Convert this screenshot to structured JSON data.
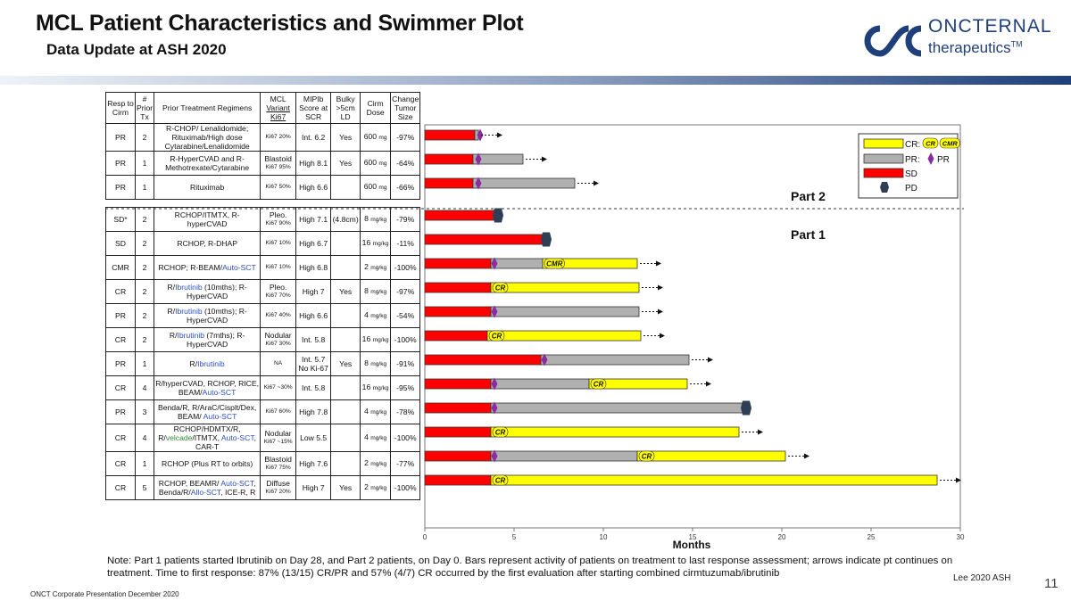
{
  "header": {
    "title": "MCL Patient Characteristics and Swimmer Plot",
    "subtitle": "Data Update at ASH 2020",
    "brand_name": "ONCTERNAL",
    "brand_sub": "therapeutics",
    "brand_tm": "TM",
    "brand_color": "#1f3f7a"
  },
  "table": {
    "headers": {
      "resp": "Resp to Cirm",
      "prior": "# Prior Tx",
      "regimens": "Prior Treatment Regimens",
      "variant_1": "MCL",
      "variant_2": "Variant",
      "variant_3": "Ki67",
      "mipi": "MIPIb Score at SCR",
      "bulky": "Bulky >5cm LD",
      "dose": "Cirm Dose",
      "change": "Change Tumor Size"
    },
    "part2_rows": [
      {
        "resp": "PR",
        "prior": "2",
        "regimen": "R-CHOP/ Lenalidomide; Rituximab/High dose Cytarabine/Lenalidomide",
        "variant": "",
        "ki67": "Ki67 20%",
        "mipi": "Int. 6.2",
        "bulky": "Yes",
        "dose": "600",
        "dose_unit": "mg",
        "change": "-97%"
      },
      {
        "resp": "PR",
        "prior": "1",
        "regimen": "R-HyperCVAD and R-Methotrexate/Cytarabine",
        "variant": "Blastoid",
        "ki67": "Ki67 95%",
        "mipi": "High 8.1",
        "bulky": "Yes",
        "dose": "600",
        "dose_unit": "mg",
        "change": "-64%"
      },
      {
        "resp": "PR",
        "prior": "1",
        "regimen": "Rituximab",
        "variant": "",
        "ki67": "Ki67 50%",
        "mipi": "High 6.6",
        "bulky": "",
        "dose": "600",
        "dose_unit": "mg",
        "change": "-66%"
      }
    ],
    "part1_rows": [
      {
        "resp": "SD*",
        "prior": "2",
        "regimen": "RCHOP/ITMTX, R-hyperCVAD",
        "variant": "Pleo.",
        "ki67": "Ki67 90%",
        "mipi": "High 7.1",
        "bulky": "(4.8cm)",
        "dose": "8",
        "dose_unit": "mg/kg",
        "change": "-79%"
      },
      {
        "resp": "SD",
        "prior": "2",
        "regimen": "RCHOP, R-DHAP",
        "variant": "",
        "ki67": "Ki67 10%",
        "mipi": "High 6.7",
        "bulky": "",
        "dose": "16",
        "dose_unit": "mg/kg",
        "change": "-11%"
      },
      {
        "resp": "CMR",
        "prior": "2",
        "regimen": "RCHOP; R-BEAM/Auto-SCT",
        "variant": "",
        "ki67": "Ki67 10%",
        "mipi": "High 6.8",
        "bulky": "",
        "dose": "2",
        "dose_unit": "mg/kg",
        "change": "-100%"
      },
      {
        "resp": "CR",
        "prior": "2",
        "regimen": "R/Ibrutinib (10mths); R-HyperCVAD",
        "variant": "Pleo.",
        "ki67": "Ki67 70%",
        "mipi": "High 7",
        "bulky": "Yes",
        "dose": "8",
        "dose_unit": "mg/kg",
        "change": "-97%"
      },
      {
        "resp": "PR",
        "prior": "2",
        "regimen": "R/Ibrutinib (10mths); R-HyperCVAD",
        "variant": "",
        "ki67": "Ki67 40%",
        "mipi": "High 6.6",
        "bulky": "",
        "dose": "4",
        "dose_unit": "mg/kg",
        "change": "-54%"
      },
      {
        "resp": "CR",
        "prior": "2",
        "regimen": "R/Ibrutinib (7mths); R-HyperCVAD",
        "variant": "Nodular",
        "ki67": "Ki67 30%",
        "mipi": "Int. 5.8",
        "bulky": "",
        "dose": "16",
        "dose_unit": "mg/kg",
        "change": "-100%"
      },
      {
        "resp": "PR",
        "prior": "1",
        "regimen": "R/Ibrutinib",
        "variant": "",
        "ki67": "NA",
        "mipi": "Int. 5.7 No Ki-67",
        "bulky": "Yes",
        "dose": "8",
        "dose_unit": "mg/kg",
        "change": "-91%"
      },
      {
        "resp": "CR",
        "prior": "4",
        "regimen": "R/hyperCVAD, RCHOP, RICE, BEAM/Auto-SCT",
        "variant": "",
        "ki67": "Ki67 ~30%",
        "mipi": "Int. 5.8",
        "bulky": "",
        "dose": "16",
        "dose_unit": "mg/kg",
        "change": "-95%"
      },
      {
        "resp": "PR",
        "prior": "3",
        "regimen": "Benda/R, R/AraC/Cisplt/Dex, BEAM/ Auto-SCT",
        "variant": "",
        "ki67": "Ki67 60%",
        "mipi": "High 7.8",
        "bulky": "",
        "dose": "4",
        "dose_unit": "mg/kg",
        "change": "-78%"
      },
      {
        "resp": "CR",
        "prior": "4",
        "regimen": "RCHOP/HDMTX/R, R/velcade/ITMTX, Auto-SCT, CAR-T",
        "variant": "Nodular",
        "ki67": "Ki67 ~15%",
        "mipi": "Low 5.5",
        "bulky": "",
        "dose": "4",
        "dose_unit": "mg/kg",
        "change": "-100%"
      },
      {
        "resp": "CR",
        "prior": "1",
        "regimen": "RCHOP (Plus RT to orbits)",
        "variant": "Blastoid",
        "ki67": "Ki67 75%",
        "mipi": "High 7.6",
        "bulky": "",
        "dose": "2",
        "dose_unit": "mg/kg",
        "change": "-77%"
      },
      {
        "resp": "CR",
        "prior": "5",
        "regimen": "RCHOP, BEAMR/ Auto-SCT, Benda/R/Allo-SCT, ICE-R, R",
        "variant": "Diffuse",
        "ki67": "Ki67 20%",
        "mipi": "High 7",
        "bulky": "Yes",
        "dose": "2",
        "dose_unit": "mg/kg",
        "change": "-100%"
      }
    ]
  },
  "chart_data": {
    "type": "swimmer",
    "xlabel": "Months",
    "xlim": [
      0,
      30
    ],
    "xticks": [
      "0",
      "5",
      "10",
      "15",
      "20",
      "25",
      "30"
    ],
    "part_labels": [
      "Part 2",
      "Part 1"
    ],
    "legend": [
      {
        "key": "CR",
        "label": "CR:",
        "sample_labels": [
          "CR",
          "CMR"
        ],
        "color": "#ffff00"
      },
      {
        "key": "PR",
        "label": "PR:",
        "marker_label": "PR",
        "color": "#b0b0b0"
      },
      {
        "key": "SD",
        "label": "SD",
        "color": "#ff0000"
      },
      {
        "key": "PD",
        "label": "PD",
        "color": "#2e3f55"
      }
    ],
    "colors": {
      "sd": "#ff0000",
      "pr": "#b0b0b0",
      "cr": "#ffff00",
      "pr_marker": "#8a2ca0",
      "pd": "#2e3f55"
    },
    "patients": [
      {
        "part": 2,
        "sd": 2.8,
        "pr": 3.0,
        "cr": null,
        "pr_marker": 3.1,
        "cr_label": null,
        "cr_label_at": null,
        "pd": false,
        "ongoing": true
      },
      {
        "part": 2,
        "sd": 2.7,
        "pr": 5.5,
        "cr": null,
        "pr_marker": 3.0,
        "cr_label": null,
        "cr_label_at": null,
        "pd": false,
        "ongoing": true
      },
      {
        "part": 2,
        "sd": 2.7,
        "pr": 8.4,
        "cr": null,
        "pr_marker": 3.0,
        "cr_label": null,
        "cr_label_at": null,
        "pd": false,
        "ongoing": true
      },
      {
        "part": 1,
        "sd": 3.9,
        "pr": null,
        "cr": null,
        "pr_marker": null,
        "cr_label": null,
        "cr_label_at": null,
        "pd": true,
        "ongoing": false
      },
      {
        "part": 1,
        "sd": 6.6,
        "pr": null,
        "cr": null,
        "pr_marker": null,
        "cr_label": null,
        "cr_label_at": null,
        "pd": true,
        "ongoing": false
      },
      {
        "part": 1,
        "sd": 3.7,
        "pr": 6.6,
        "cr": 11.9,
        "pr_marker": 3.9,
        "cr_label": "CMR",
        "cr_label_at": 6.7,
        "pd": false,
        "ongoing": true
      },
      {
        "part": 1,
        "sd": 3.7,
        "pr": null,
        "cr": 12.0,
        "pr_marker": null,
        "cr_label": "CR",
        "cr_label_at": 3.8,
        "pd": false,
        "ongoing": true
      },
      {
        "part": 1,
        "sd": 3.7,
        "pr": 12.0,
        "cr": null,
        "pr_marker": 3.9,
        "cr_label": null,
        "cr_label_at": null,
        "pd": false,
        "ongoing": true
      },
      {
        "part": 1,
        "sd": 3.5,
        "pr": null,
        "cr": 12.1,
        "pr_marker": null,
        "cr_label": "CR",
        "cr_label_at": 3.6,
        "pd": false,
        "ongoing": true
      },
      {
        "part": 1,
        "sd": 6.5,
        "pr": 14.8,
        "cr": null,
        "pr_marker": 6.7,
        "cr_label": null,
        "cr_label_at": null,
        "pd": false,
        "ongoing": true
      },
      {
        "part": 1,
        "sd": 3.7,
        "pr": 9.2,
        "cr": 14.7,
        "pr_marker": 3.9,
        "cr_label": "CR",
        "cr_label_at": 9.3,
        "pd": false,
        "ongoing": true
      },
      {
        "part": 1,
        "sd": 3.7,
        "pr": 17.8,
        "cr": null,
        "pr_marker": 3.9,
        "cr_label": null,
        "cr_label_at": null,
        "pd": true,
        "ongoing": false
      },
      {
        "part": 1,
        "sd": 3.7,
        "pr": null,
        "cr": 17.6,
        "pr_marker": null,
        "cr_label": "CR",
        "cr_label_at": 3.8,
        "pd": false,
        "ongoing": true
      },
      {
        "part": 1,
        "sd": 3.7,
        "pr": 11.9,
        "cr": 20.2,
        "pr_marker": 3.9,
        "cr_label": "CR",
        "cr_label_at": 12.0,
        "pd": false,
        "ongoing": true
      },
      {
        "part": 1,
        "sd": 3.7,
        "pr": null,
        "cr": 28.7,
        "pr_marker": null,
        "cr_label": "CR",
        "cr_label_at": 3.8,
        "pd": false,
        "ongoing": true
      }
    ]
  },
  "note": "Note:  Part 1 patients started Ibrutinib on Day 28, and Part 2 patients, on Day 0.  Bars represent activity of patients on treatment to last response assessment; arrows indicate pt continues on treatment.  Time to first response: 87% (13/15) CR/PR and 57% (4/7) CR occurred by the first evaluation after starting combined cirmtuzumab/ibrutinib",
  "citation": "Lee 2020 ASH",
  "page_number": "11",
  "footer": "ONCT Corporate Presentation December 2020"
}
